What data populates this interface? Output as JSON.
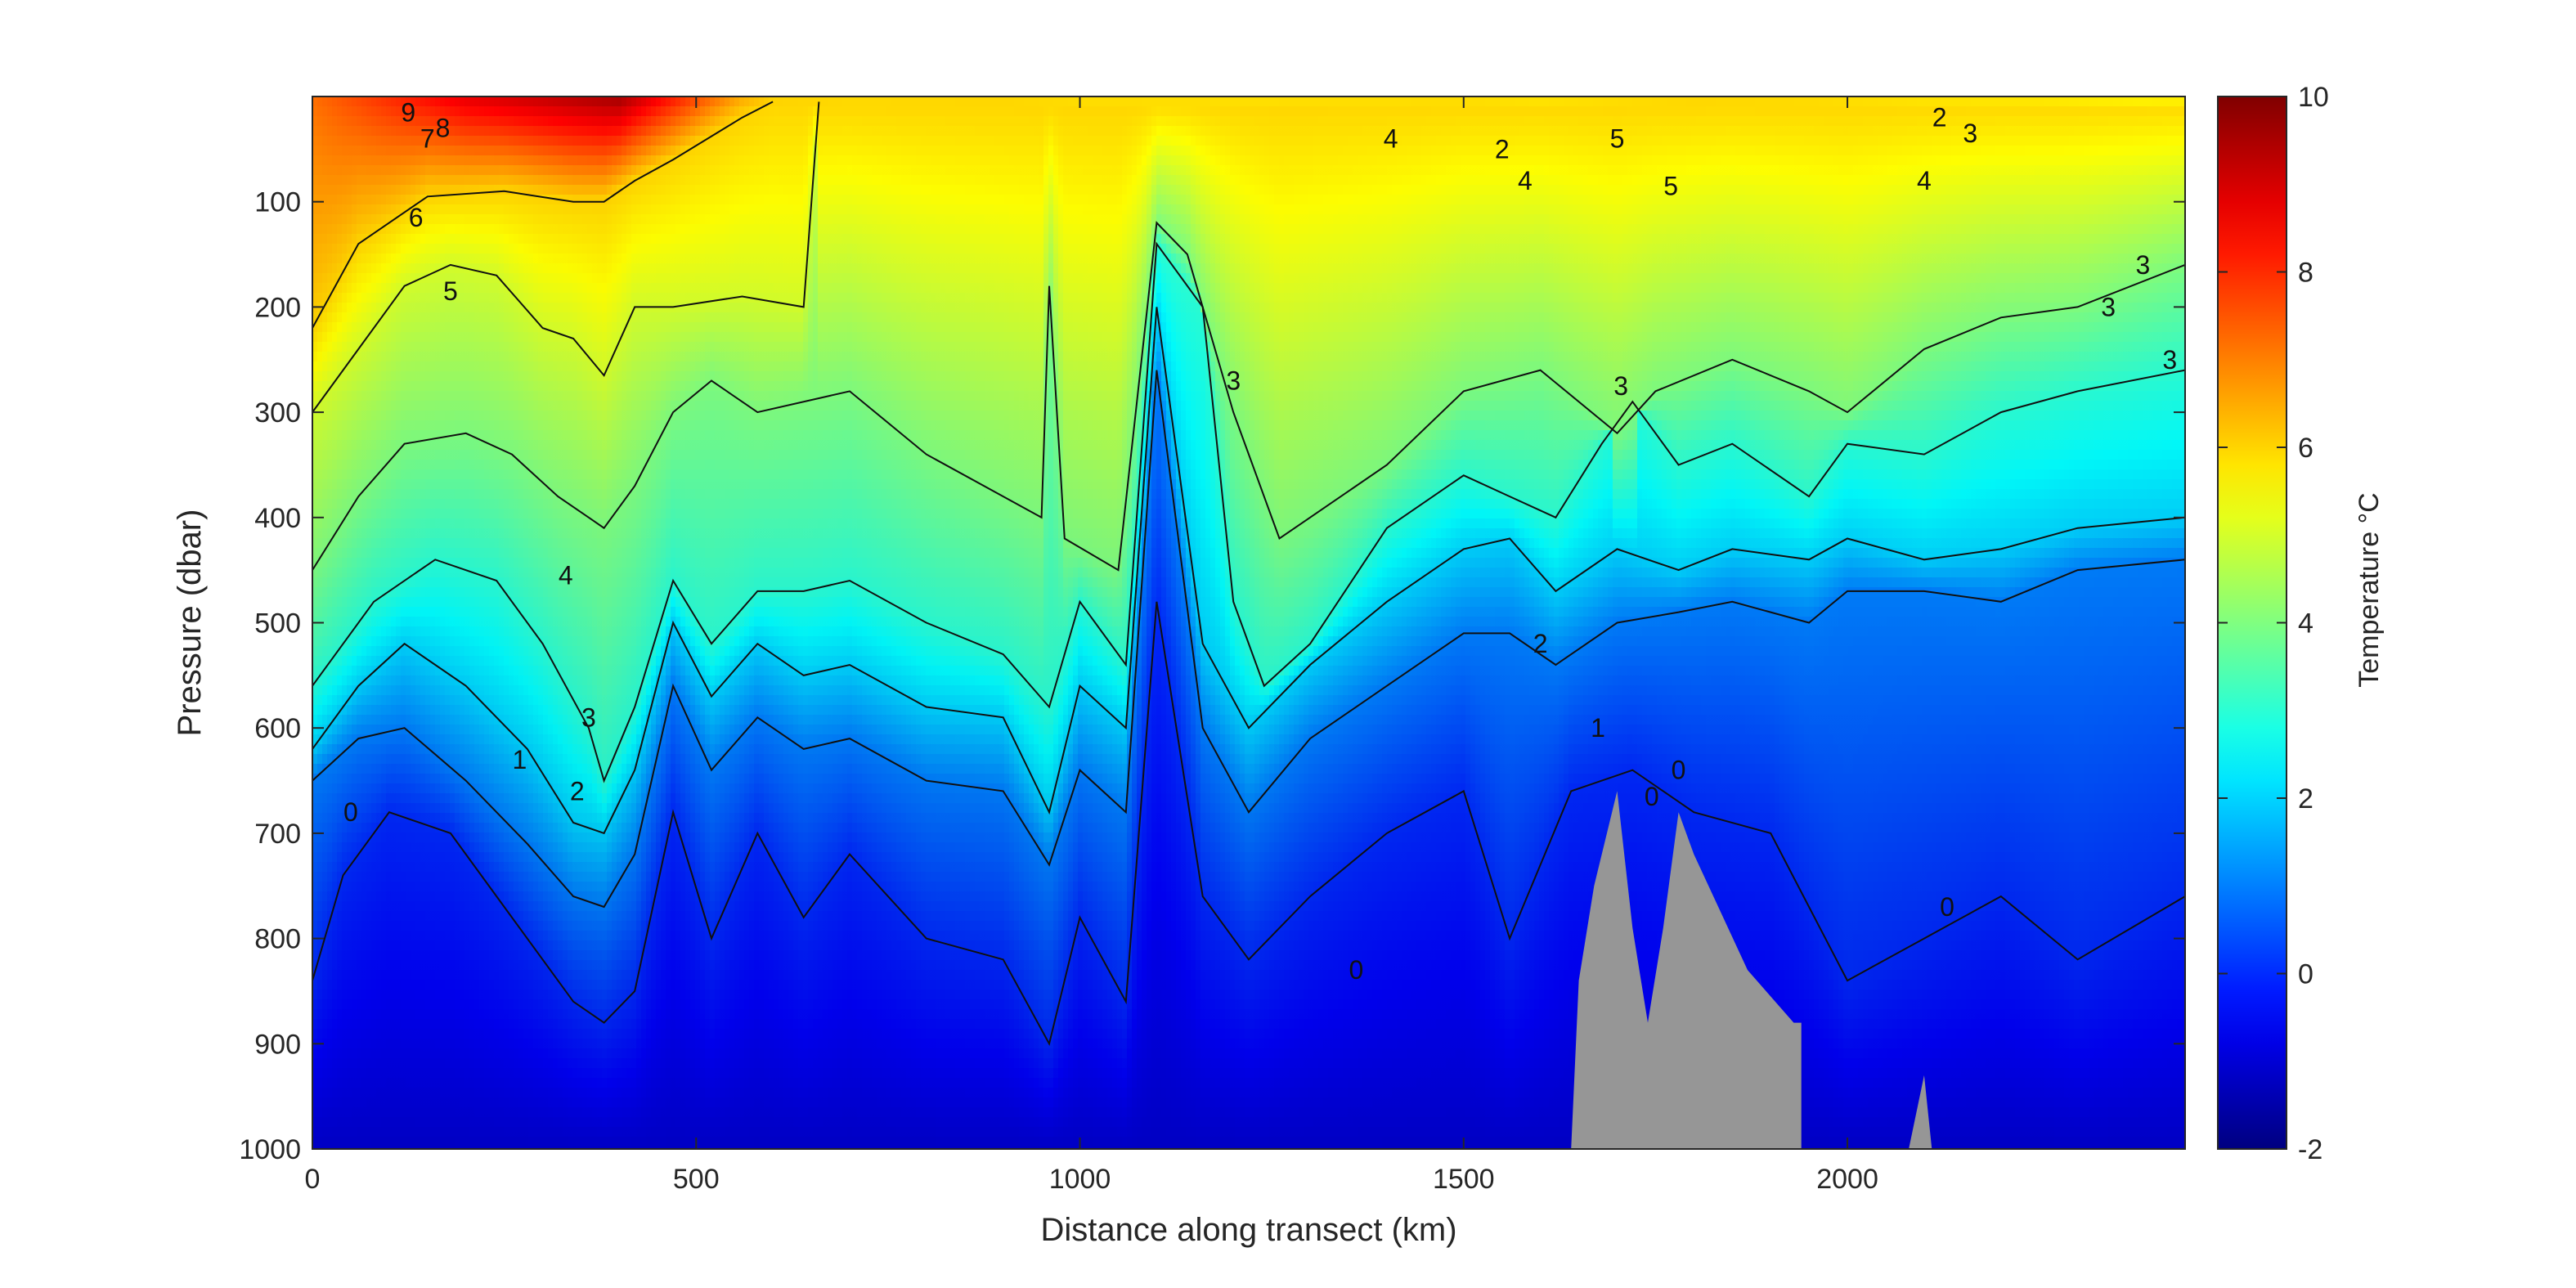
{
  "chart_data": {
    "type": "heatmap",
    "subtype": "filled-contour section",
    "xlabel": "Distance along transect (km)",
    "ylabel": "Pressure (dbar)",
    "colorbar_label": "Temperature °C",
    "colormap": "jet",
    "xlim": [
      0,
      2440
    ],
    "ylim": [
      0,
      1000
    ],
    "y_reversed": true,
    "xticks": [
      0,
      500,
      1000,
      1500,
      2000
    ],
    "yticks": [
      100,
      200,
      300,
      400,
      500,
      600,
      700,
      800,
      900,
      1000
    ],
    "clim": [
      -2,
      10
    ],
    "colorbar_ticks": [
      -2,
      0,
      2,
      4,
      6,
      8,
      10
    ],
    "grid": false,
    "isotherms": [
      {
        "level": 6,
        "x": [
          0,
          60,
          150,
          250,
          340,
          380,
          420,
          470,
          560,
          600
        ],
        "pressure": [
          220,
          140,
          95,
          90,
          100,
          100,
          80,
          60,
          20,
          5
        ]
      },
      {
        "level": 5,
        "x": [
          0,
          60,
          120,
          180,
          240,
          300,
          340,
          380,
          420,
          470,
          560,
          640,
          660
        ],
        "pressure": [
          300,
          240,
          180,
          160,
          170,
          220,
          230,
          265,
          200,
          200,
          190,
          200,
          5
        ]
      },
      {
        "level": 4,
        "x": [
          0,
          60,
          120,
          200,
          260,
          320,
          360,
          380,
          420,
          470,
          520,
          580,
          700,
          800,
          950,
          960,
          980,
          1050,
          1100,
          1140,
          1200,
          1260,
          1400,
          1500,
          1600,
          1700,
          1750,
          1850,
          1950,
          2000,
          2100,
          2200,
          2300,
          2440
        ],
        "pressure": [
          450,
          380,
          330,
          320,
          340,
          380,
          400,
          410,
          370,
          300,
          270,
          300,
          280,
          340,
          400,
          180,
          420,
          450,
          120,
          150,
          300,
          420,
          350,
          280,
          260,
          320,
          280,
          250,
          280,
          300,
          240,
          210,
          200,
          160
        ]
      },
      {
        "level": 3,
        "x": [
          0,
          80,
          160,
          240,
          300,
          360,
          380,
          420,
          470,
          520,
          580,
          640,
          700,
          800,
          900,
          960,
          1000,
          1060,
          1100,
          1160,
          1200,
          1240,
          1300,
          1400,
          1500,
          1560,
          1620,
          1680,
          1720,
          1780,
          1850,
          1950,
          2000,
          2100,
          2200,
          2300,
          2440
        ],
        "pressure": [
          560,
          480,
          440,
          460,
          520,
          600,
          650,
          580,
          460,
          520,
          470,
          470,
          460,
          500,
          530,
          580,
          480,
          540,
          140,
          200,
          480,
          560,
          520,
          410,
          360,
          380,
          400,
          330,
          290,
          350,
          330,
          380,
          330,
          340,
          300,
          280,
          260
        ]
      },
      {
        "level": 2,
        "x": [
          0,
          60,
          120,
          200,
          280,
          340,
          380,
          420,
          470,
          520,
          580,
          640,
          700,
          800,
          900,
          960,
          1000,
          1060,
          1100,
          1160,
          1220,
          1300,
          1400,
          1500,
          1560,
          1620,
          1700,
          1780,
          1850,
          1950,
          2000,
          2100,
          2200,
          2300,
          2440
        ],
        "pressure": [
          620,
          560,
          520,
          560,
          620,
          690,
          700,
          640,
          500,
          570,
          520,
          550,
          540,
          580,
          590,
          680,
          560,
          600,
          200,
          520,
          600,
          540,
          480,
          430,
          420,
          470,
          430,
          450,
          430,
          440,
          420,
          440,
          430,
          410,
          400
        ]
      },
      {
        "level": 1,
        "x": [
          0,
          60,
          120,
          200,
          280,
          340,
          380,
          420,
          470,
          520,
          580,
          640,
          700,
          800,
          900,
          960,
          1000,
          1060,
          1100,
          1160,
          1220,
          1300,
          1400,
          1500,
          1560,
          1620,
          1700,
          1780,
          1850,
          1950,
          2000,
          2100,
          2200,
          2300,
          2440
        ],
        "pressure": [
          650,
          610,
          600,
          650,
          710,
          760,
          770,
          720,
          560,
          640,
          590,
          620,
          610,
          650,
          660,
          730,
          640,
          680,
          260,
          600,
          680,
          610,
          560,
          510,
          510,
          540,
          500,
          490,
          480,
          500,
          470,
          470,
          480,
          450,
          440
        ]
      },
      {
        "level": 0,
        "x": [
          0,
          40,
          100,
          180,
          260,
          340,
          380,
          420,
          470,
          520,
          580,
          640,
          700,
          800,
          900,
          960,
          1000,
          1060,
          1100,
          1160,
          1220,
          1300,
          1400,
          1500,
          1560,
          1640,
          1720,
          1800,
          1900,
          2000,
          2100,
          2200,
          2300,
          2440
        ],
        "pressure": [
          840,
          740,
          680,
          700,
          780,
          860,
          880,
          850,
          680,
          800,
          700,
          780,
          720,
          800,
          820,
          900,
          780,
          860,
          480,
          760,
          820,
          760,
          700,
          660,
          800,
          660,
          640,
          680,
          700,
          840,
          800,
          760,
          820,
          760
        ]
      }
    ],
    "contour_labels": [
      {
        "text": "9",
        "x": 125,
        "pressure": 15
      },
      {
        "text": "7",
        "x": 150,
        "pressure": 40
      },
      {
        "text": "8",
        "x": 170,
        "pressure": 30
      },
      {
        "text": "6",
        "x": 135,
        "pressure": 115
      },
      {
        "text": "5",
        "x": 180,
        "pressure": 185
      },
      {
        "text": "4",
        "x": 330,
        "pressure": 455
      },
      {
        "text": "3",
        "x": 360,
        "pressure": 590
      },
      {
        "text": "1",
        "x": 270,
        "pressure": 630
      },
      {
        "text": "2",
        "x": 345,
        "pressure": 660
      },
      {
        "text": "0",
        "x": 50,
        "pressure": 680
      },
      {
        "text": "4",
        "x": 1405,
        "pressure": 40
      },
      {
        "text": "3",
        "x": 1200,
        "pressure": 270
      },
      {
        "text": "0",
        "x": 1360,
        "pressure": 830
      },
      {
        "text": "2",
        "x": 1550,
        "pressure": 50
      },
      {
        "text": "2",
        "x": 1600,
        "pressure": 520
      },
      {
        "text": "1",
        "x": 1675,
        "pressure": 600
      },
      {
        "text": "0",
        "x": 1745,
        "pressure": 665
      },
      {
        "text": "0",
        "x": 1780,
        "pressure": 640
      },
      {
        "text": "3",
        "x": 1705,
        "pressure": 275
      },
      {
        "text": "4",
        "x": 1580,
        "pressure": 80
      },
      {
        "text": "5",
        "x": 1700,
        "pressure": 40
      },
      {
        "text": "5",
        "x": 1770,
        "pressure": 85
      },
      {
        "text": "4",
        "x": 2100,
        "pressure": 80
      },
      {
        "text": "0",
        "x": 2130,
        "pressure": 770
      },
      {
        "text": "2",
        "x": 2120,
        "pressure": 20
      },
      {
        "text": "3",
        "x": 2160,
        "pressure": 35
      },
      {
        "text": "3",
        "x": 2340,
        "pressure": 200
      },
      {
        "text": "3",
        "x": 2385,
        "pressure": 160
      },
      {
        "text": "3",
        "x": 2420,
        "pressure": 250
      }
    ],
    "topography": [
      {
        "name": "main-seamount",
        "x": [
          1640,
          1650,
          1670,
          1700,
          1720,
          1740,
          1760,
          1780,
          1800,
          1870,
          1930,
          1940,
          1940,
          1640
        ],
        "pressure": [
          1000,
          840,
          750,
          660,
          790,
          880,
          790,
          680,
          720,
          830,
          880,
          880,
          1000,
          1000
        ]
      },
      {
        "name": "small-peak",
        "x": [
          2080,
          2100,
          2110,
          2110,
          2080
        ],
        "pressure": [
          1000,
          930,
          1000,
          1000,
          1000
        ]
      }
    ]
  }
}
